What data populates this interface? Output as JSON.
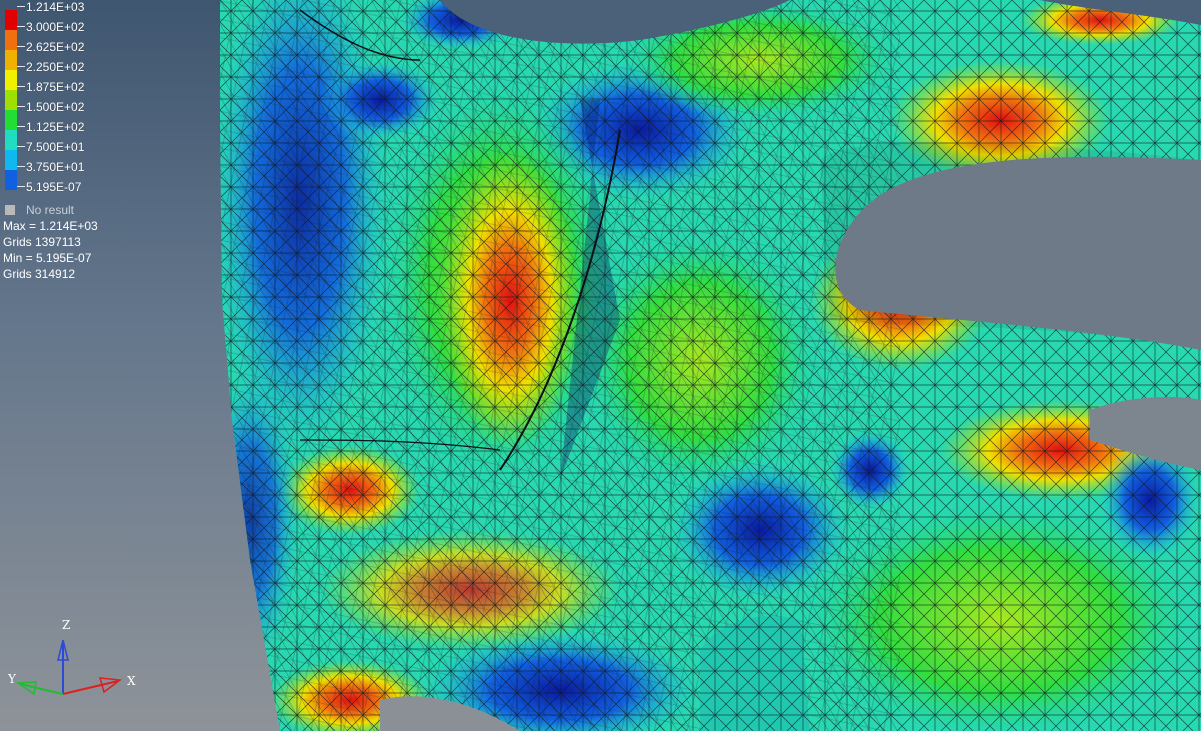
{
  "legend": {
    "entries": [
      {
        "label": "1.214E+03",
        "color": "#e00000"
      },
      {
        "label": "3.000E+02",
        "color": "#f07010"
      },
      {
        "label": "2.625E+02",
        "color": "#f0b000"
      },
      {
        "label": "2.250E+02",
        "color": "#f0f000"
      },
      {
        "label": "1.875E+02",
        "color": "#9ee000"
      },
      {
        "label": "1.500E+02",
        "color": "#22dd33"
      },
      {
        "label": "1.125E+02",
        "color": "#20ddc0"
      },
      {
        "label": "7.500E+01",
        "color": "#10b8f0"
      },
      {
        "label": "3.750E+01",
        "color": "#1060e0"
      },
      {
        "label": "5.195E-07",
        "color": "#000090"
      }
    ],
    "no_result_label": "No result",
    "max_line": "Max = 1.214E+03",
    "max_grids": "Grids 1397113",
    "min_line": "Min = 5.195E-07",
    "min_grids": "Grids 314912"
  },
  "triad": {
    "z_label": "Z",
    "y_label": "Y",
    "x_label": "X",
    "z_color": "#2b4ad8",
    "y_color": "#22bb33",
    "x_color": "#dd2020"
  }
}
